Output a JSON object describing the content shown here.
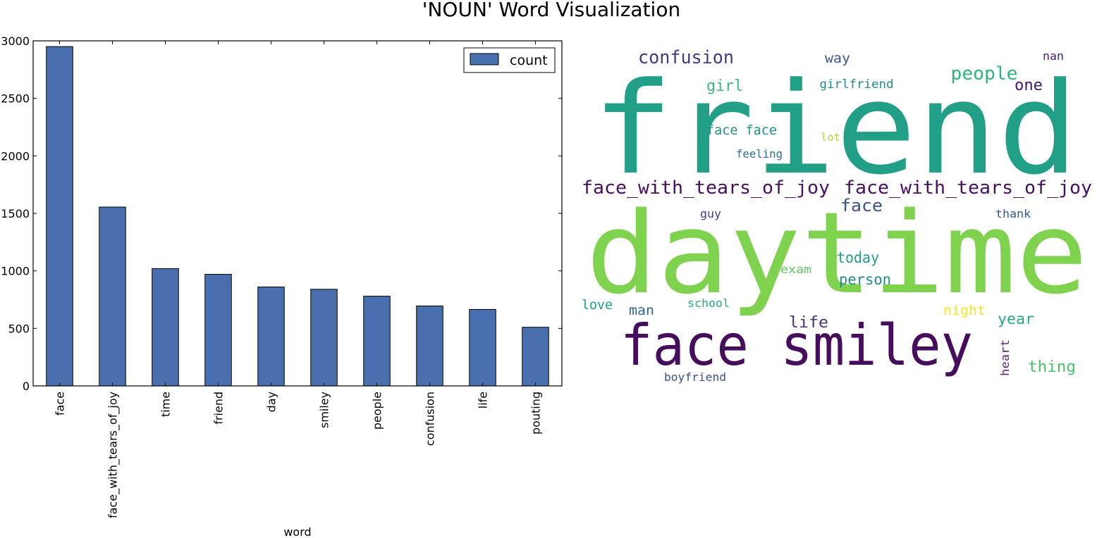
{
  "figure_title": "'NOUN' Word Visualization",
  "chart_data": [
    {
      "type": "bar",
      "title": "",
      "xlabel": "word",
      "ylabel": "",
      "categories": [
        "face",
        "face_with_tears_of_joy",
        "time",
        "friend",
        "day",
        "smiley",
        "people",
        "confusion",
        "life",
        "pouting"
      ],
      "series": [
        {
          "name": "count",
          "values": [
            2950,
            1555,
            1020,
            970,
            860,
            840,
            780,
            695,
            665,
            510
          ]
        }
      ],
      "ylim": [
        0,
        3000
      ],
      "yticks": [
        0,
        500,
        1000,
        1500,
        2000,
        2500,
        3000
      ],
      "legend": "top-right",
      "grid": false,
      "bar_color": "#4a6fae"
    },
    {
      "type": "wordcloud",
      "colormap": "viridis",
      "words": [
        {
          "text": "friend",
          "color": "#21a087"
        },
        {
          "text": "daytime",
          "color": "#7ed24e"
        },
        {
          "text": "face smiley",
          "color": "#450d5c"
        },
        {
          "text": "face_with_tears_of_joy",
          "color": "#470f62"
        },
        {
          "text": "face_with_tears_of_joy",
          "color": "#470f62"
        },
        {
          "text": "confusion",
          "color": "#3e3c86"
        },
        {
          "text": "people",
          "color": "#2fb47c"
        },
        {
          "text": "girl",
          "color": "#3bbb75"
        },
        {
          "text": "face face",
          "color": "#21918c"
        },
        {
          "text": "girlfriend",
          "color": "#23868e"
        },
        {
          "text": "way",
          "color": "#3a548c"
        },
        {
          "text": "nan",
          "color": "#481f70"
        },
        {
          "text": "one",
          "color": "#44166a"
        },
        {
          "text": "lot",
          "color": "#a5db36"
        },
        {
          "text": "feeling",
          "color": "#2c6e8e"
        },
        {
          "text": "face",
          "color": "#3b528b"
        },
        {
          "text": "guy",
          "color": "#433e85"
        },
        {
          "text": "thank",
          "color": "#38588c"
        },
        {
          "text": "today",
          "color": "#1f9e89"
        },
        {
          "text": "exam",
          "color": "#5ec962"
        },
        {
          "text": "person",
          "color": "#238a8d"
        },
        {
          "text": "love",
          "color": "#1fa088"
        },
        {
          "text": "man",
          "color": "#31688e"
        },
        {
          "text": "school",
          "color": "#26ad81"
        },
        {
          "text": "night",
          "color": "#f5e324"
        },
        {
          "text": "year",
          "color": "#25ab82"
        },
        {
          "text": "life",
          "color": "#46327e"
        },
        {
          "text": "heart",
          "color": "#5b2a7a"
        },
        {
          "text": "thing",
          "color": "#4ac16d"
        },
        {
          "text": "boyfriend",
          "color": "#3b528b"
        }
      ]
    }
  ]
}
